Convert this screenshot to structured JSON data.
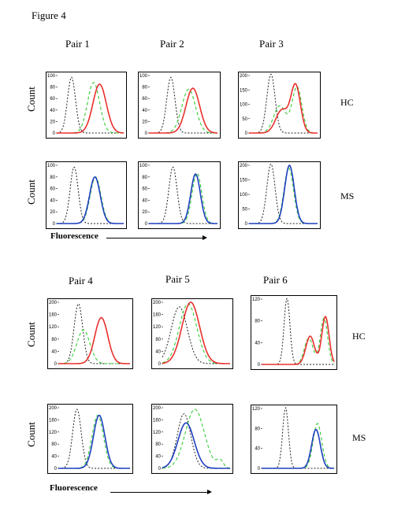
{
  "figure": {
    "title": "Figure 4",
    "pairs": [
      {
        "label": "Pair 1"
      },
      {
        "label": "Pair 2"
      },
      {
        "label": "Pair 3"
      },
      {
        "label": "Pair 4"
      },
      {
        "label": "Pair 5"
      },
      {
        "label": "Pair 6"
      }
    ],
    "row_labels": {
      "hc": "HC",
      "ms": "MS"
    },
    "y_axis_label": "Count",
    "x_axis_label": "Fluorescence"
  },
  "colors": {
    "isotype": "#222222",
    "control": "#33cc33",
    "hc": "#e8302c",
    "ms": "#1f3fbf"
  },
  "chart_data": [
    {
      "type": "line",
      "pair": "Pair 1",
      "group": "HC",
      "ylim": [
        0,
        100
      ],
      "yticks": [
        0,
        20,
        40,
        60,
        80,
        100
      ],
      "series": [
        {
          "style": "isotype",
          "peaks": [
            [
              0.22,
              97,
              0.06
            ]
          ]
        },
        {
          "style": "control",
          "peaks": [
            [
              0.55,
              88,
              0.09
            ]
          ]
        },
        {
          "style": "sample",
          "peaks": [
            [
              0.64,
              85,
              0.1
            ]
          ]
        }
      ]
    },
    {
      "type": "line",
      "pair": "Pair 2",
      "group": "HC",
      "ylim": [
        0,
        100
      ],
      "yticks": [
        0,
        20,
        40,
        60,
        80,
        100
      ],
      "series": [
        {
          "style": "isotype",
          "peaks": [
            [
              0.32,
              97,
              0.06
            ]
          ]
        },
        {
          "style": "control",
          "peaks": [
            [
              0.58,
              76,
              0.1
            ]
          ]
        },
        {
          "style": "sample",
          "peaks": [
            [
              0.64,
              78,
              0.1
            ]
          ]
        }
      ]
    },
    {
      "type": "line",
      "pair": "Pair 3",
      "group": "HC",
      "ylim": [
        0,
        200
      ],
      "yticks": [
        0,
        50,
        100,
        150,
        200
      ],
      "series": [
        {
          "style": "isotype",
          "peaks": [
            [
              0.32,
              205,
              0.06
            ]
          ]
        },
        {
          "style": "control",
          "peaks": [
            [
              0.45,
              95,
              0.09
            ],
            [
              0.7,
              160,
              0.07
            ]
          ]
        },
        {
          "style": "sample",
          "peaks": [
            [
              0.48,
              80,
              0.09
            ],
            [
              0.68,
              165,
              0.07
            ]
          ]
        }
      ]
    },
    {
      "type": "line",
      "pair": "Pair 1",
      "group": "MS",
      "ylim": [
        0,
        100
      ],
      "yticks": [
        0,
        20,
        40,
        60,
        80,
        100
      ],
      "series": [
        {
          "style": "isotype",
          "peaks": [
            [
              0.26,
              97,
              0.06
            ]
          ]
        },
        {
          "style": "control",
          "peaks": [
            [
              0.58,
              80,
              0.08
            ]
          ]
        },
        {
          "style": "sample",
          "peaks": [
            [
              0.57,
              80,
              0.08
            ]
          ]
        }
      ]
    },
    {
      "type": "line",
      "pair": "Pair 2",
      "group": "MS",
      "ylim": [
        0,
        100
      ],
      "yticks": [
        0,
        20,
        40,
        60,
        80,
        100
      ],
      "series": [
        {
          "style": "isotype",
          "peaks": [
            [
              0.35,
              97,
              0.06
            ]
          ]
        },
        {
          "style": "control",
          "peaks": [
            [
              0.7,
              87,
              0.07
            ]
          ]
        },
        {
          "style": "sample",
          "peaks": [
            [
              0.68,
              85,
              0.07
            ]
          ]
        }
      ]
    },
    {
      "type": "line",
      "pair": "Pair 3",
      "group": "MS",
      "ylim": [
        0,
        200
      ],
      "yticks": [
        0,
        50,
        100,
        150,
        200
      ],
      "series": [
        {
          "style": "isotype",
          "peaks": [
            [
              0.32,
              205,
              0.06
            ]
          ]
        },
        {
          "style": "control",
          "peaks": [
            [
              0.58,
              190,
              0.07
            ]
          ]
        },
        {
          "style": "sample",
          "peaks": [
            [
              0.59,
              200,
              0.07
            ]
          ]
        }
      ]
    },
    {
      "type": "line",
      "pair": "Pair 4",
      "group": "HC",
      "ylim": [
        0,
        200
      ],
      "yticks": [
        0,
        40,
        80,
        120,
        160,
        200
      ],
      "series": [
        {
          "style": "isotype",
          "peaks": [
            [
              0.28,
              195,
              0.06
            ]
          ]
        },
        {
          "style": "control",
          "peaks": [
            [
              0.35,
              110,
              0.09
            ]
          ]
        },
        {
          "style": "sample",
          "peaks": [
            [
              0.6,
              150,
              0.09
            ]
          ]
        }
      ]
    },
    {
      "type": "line",
      "pair": "Pair 5",
      "group": "HC",
      "ylim": [
        0,
        200
      ],
      "yticks": [
        0,
        40,
        80,
        120,
        160,
        200
      ],
      "series": [
        {
          "style": "isotype",
          "peaks": [
            [
              0.25,
              185,
              0.12
            ]
          ]
        },
        {
          "style": "control",
          "peaks": [
            [
              0.38,
              195,
              0.13
            ]
          ]
        },
        {
          "style": "sample",
          "peaks": [
            [
              0.42,
              200,
              0.13
            ]
          ]
        }
      ]
    },
    {
      "type": "line",
      "pair": "Pair 6",
      "group": "HC",
      "ylim": [
        0,
        120
      ],
      "yticks": [
        0,
        40,
        80,
        120
      ],
      "series": [
        {
          "style": "isotype",
          "peaks": [
            [
              0.35,
              122,
              0.04
            ]
          ]
        },
        {
          "style": "control",
          "peaks": [
            [
              0.65,
              48,
              0.06
            ],
            [
              0.86,
              85,
              0.05
            ]
          ]
        },
        {
          "style": "sample",
          "peaks": [
            [
              0.67,
              52,
              0.06
            ],
            [
              0.88,
              88,
              0.05
            ]
          ]
        }
      ]
    },
    {
      "type": "line",
      "pair": "Pair 4",
      "group": "MS",
      "ylim": [
        0,
        200
      ],
      "yticks": [
        0,
        40,
        80,
        120,
        160,
        200
      ],
      "series": [
        {
          "style": "isotype",
          "peaks": [
            [
              0.26,
              195,
              0.06
            ]
          ]
        },
        {
          "style": "control",
          "peaks": [
            [
              0.55,
              175,
              0.08
            ]
          ]
        },
        {
          "style": "sample",
          "peaks": [
            [
              0.57,
              175,
              0.08
            ]
          ]
        }
      ]
    },
    {
      "type": "line",
      "pair": "Pair 5",
      "group": "MS",
      "ylim": [
        0,
        200
      ],
      "yticks": [
        0,
        40,
        80,
        120,
        160,
        200
      ],
      "series": [
        {
          "style": "isotype",
          "peaks": [
            [
              0.32,
              180,
              0.1
            ]
          ]
        },
        {
          "style": "control",
          "peaks": [
            [
              0.48,
              195,
              0.14
            ],
            [
              0.85,
              25,
              0.05
            ]
          ]
        },
        {
          "style": "sample",
          "peaks": [
            [
              0.35,
              150,
              0.12
            ]
          ]
        }
      ]
    },
    {
      "type": "line",
      "pair": "Pair 6",
      "group": "MS",
      "ylim": [
        0,
        120
      ],
      "yticks": [
        0,
        40,
        80,
        120
      ],
      "series": [
        {
          "style": "isotype",
          "peaks": [
            [
              0.33,
              122,
              0.04
            ]
          ]
        },
        {
          "style": "control",
          "peaks": [
            [
              0.77,
              90,
              0.06
            ]
          ]
        },
        {
          "style": "sample",
          "peaks": [
            [
              0.75,
              78,
              0.06
            ]
          ]
        }
      ]
    }
  ]
}
